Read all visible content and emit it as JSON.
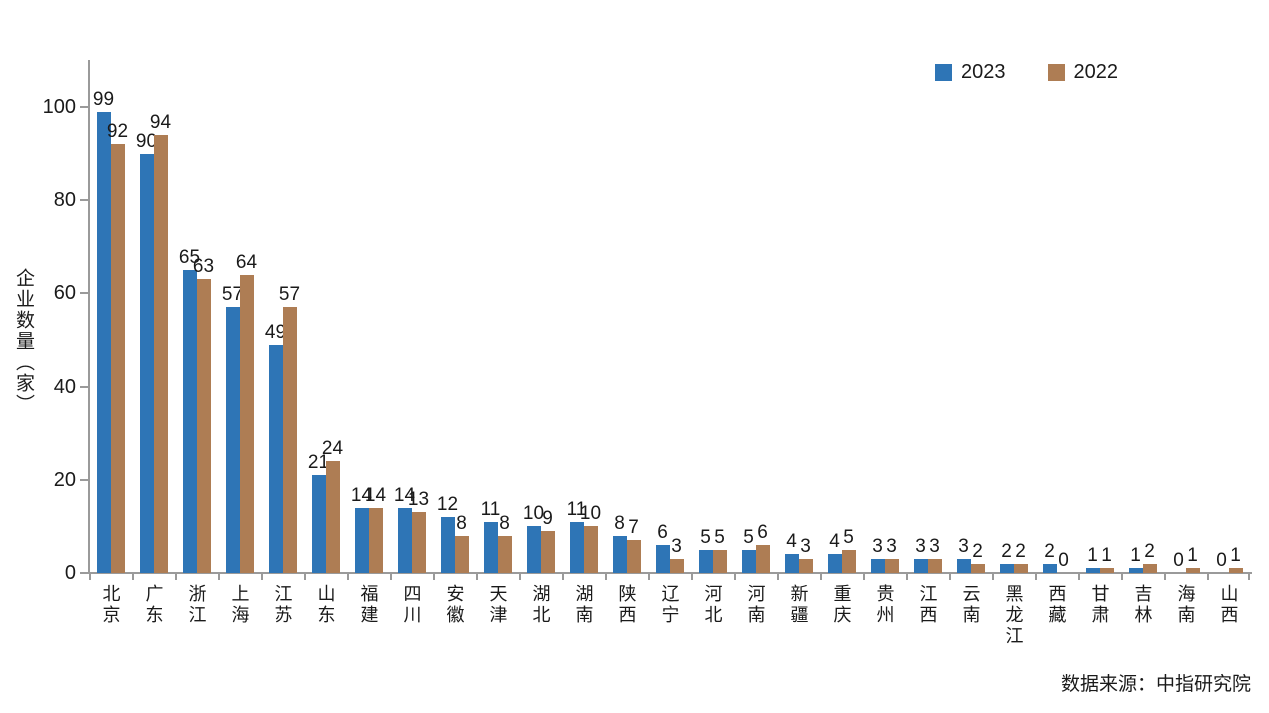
{
  "legend": {
    "items": [
      {
        "label": "2023",
        "color": "#2E75B6"
      },
      {
        "label": "2022",
        "color": "#AE7D54"
      }
    ]
  },
  "source_note": "数据来源：中指研究院",
  "chart_data": {
    "type": "bar",
    "title": "",
    "xlabel": "",
    "ylabel": "企业数量（家）",
    "ylim": [
      0,
      100
    ],
    "yticks": [
      0,
      20,
      40,
      60,
      80,
      100
    ],
    "grid": false,
    "legend_position": "top-right",
    "bar_value_labels": true,
    "axis_color": "#9a9a9a",
    "text_color": "#1a1a1a",
    "categories": [
      "北京",
      "广东",
      "浙江",
      "上海",
      "江苏",
      "山东",
      "福建",
      "四川",
      "安徽",
      "天津",
      "湖北",
      "湖南",
      "陕西",
      "辽宁",
      "河北",
      "河南",
      "新疆",
      "重庆",
      "贵州",
      "江西",
      "云南",
      "黑龙江",
      "西藏",
      "甘肃",
      "吉林",
      "海南",
      "山西"
    ],
    "series": [
      {
        "name": "2023",
        "color": "#2E75B6",
        "values": [
          99,
          90,
          65,
          57,
          49,
          21,
          14,
          14,
          12,
          11,
          10,
          11,
          8,
          6,
          5,
          5,
          4,
          4,
          3,
          3,
          3,
          2,
          2,
          1,
          1,
          0,
          0
        ]
      },
      {
        "name": "2022",
        "color": "#AE7D54",
        "values": [
          92,
          94,
          63,
          64,
          57,
          24,
          14,
          13,
          8,
          8,
          9,
          10,
          7,
          3,
          5,
          6,
          3,
          5,
          3,
          3,
          2,
          2,
          0,
          1,
          2,
          1,
          1
        ]
      }
    ]
  }
}
